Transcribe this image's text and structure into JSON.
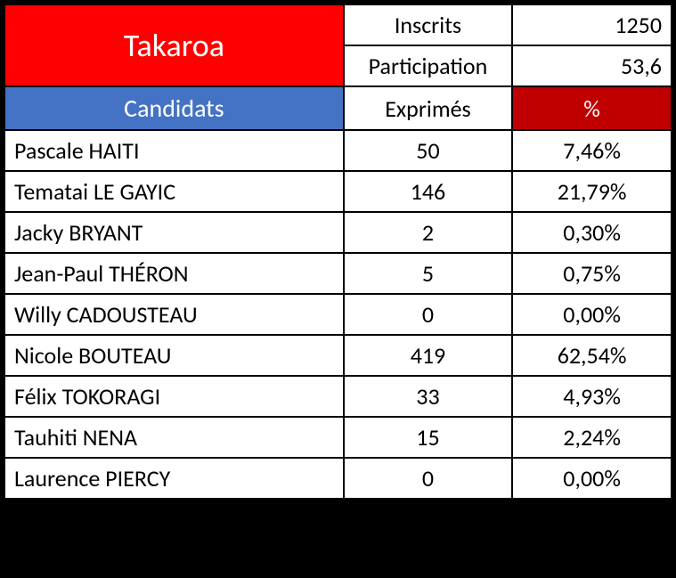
{
  "location": "Takaroa",
  "stats": {
    "inscrits_label": "Inscrits",
    "inscrits_value": "1250",
    "participation_label": "Participation",
    "participation_value": "53,6"
  },
  "headers": {
    "candidats": "Candidats",
    "exprimes": "Exprimés",
    "percent": "%"
  },
  "candidates": [
    {
      "name": "Pascale HAITI",
      "votes": "50",
      "pct": "7,46%"
    },
    {
      "name": "Tematai LE GAYIC",
      "votes": "146",
      "pct": "21,79%"
    },
    {
      "name": "Jacky BRYANT",
      "votes": "2",
      "pct": "0,30%"
    },
    {
      "name": "Jean-Paul THÉRON",
      "votes": "5",
      "pct": "0,75%"
    },
    {
      "name": "Willy CADOUSTEAU",
      "votes": "0",
      "pct": "0,00%"
    },
    {
      "name": "Nicole BOUTEAU",
      "votes": "419",
      "pct": "62,54%"
    },
    {
      "name": "Félix TOKORAGI",
      "votes": "33",
      "pct": "4,93%"
    },
    {
      "name": "Tauhiti NENA",
      "votes": "15",
      "pct": "2,24%"
    },
    {
      "name": "Laurence PIERCY",
      "votes": "0",
      "pct": "0,00%"
    }
  ],
  "colors": {
    "title_bg": "#ff0000",
    "candidats_bg": "#4472c4",
    "percent_bg": "#c00000",
    "border": "#000000",
    "text_light": "#ffffff",
    "text_dark": "#000000"
  }
}
